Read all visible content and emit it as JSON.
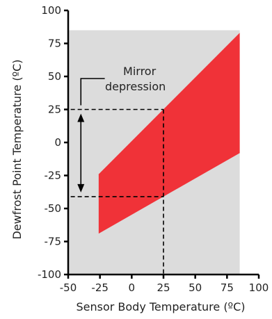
{
  "chart_data": {
    "type": "area",
    "xlabel": "Sensor Body Temperature (ºC)",
    "ylabel": "Dewfrost Point Temperature (ºC)",
    "xlim": [
      -50,
      100
    ],
    "ylim": [
      -100,
      100
    ],
    "x_ticks": [
      -50,
      -25,
      0,
      25,
      50,
      75,
      100
    ],
    "y_ticks": [
      -100,
      -75,
      -50,
      -25,
      0,
      25,
      50,
      75,
      100
    ],
    "x_tick_labels": [
      "-50",
      "-25",
      "0",
      "25",
      "50",
      "75",
      "100"
    ],
    "y_tick_labels": [
      "-100",
      "-75",
      "-50",
      "-25",
      "0",
      "25",
      "50",
      "75",
      "100"
    ],
    "background_region": {
      "x": [
        -50,
        85
      ],
      "y": [
        -100,
        85
      ]
    },
    "operating_band": {
      "x": [
        -26,
        85
      ],
      "upper": [
        -24,
        83
      ],
      "lower": [
        -69,
        -8
      ]
    },
    "reference_x": 25,
    "reference_y_upper": 25,
    "reference_y_lower": -41,
    "annotation": {
      "lines": [
        "Mirror",
        "depression"
      ],
      "anchor": {
        "x": -42,
        "y": 50
      }
    },
    "colors": {
      "band": "#f03238",
      "background": "#dcdcdc",
      "axis": "#000000"
    },
    "grid": false
  }
}
